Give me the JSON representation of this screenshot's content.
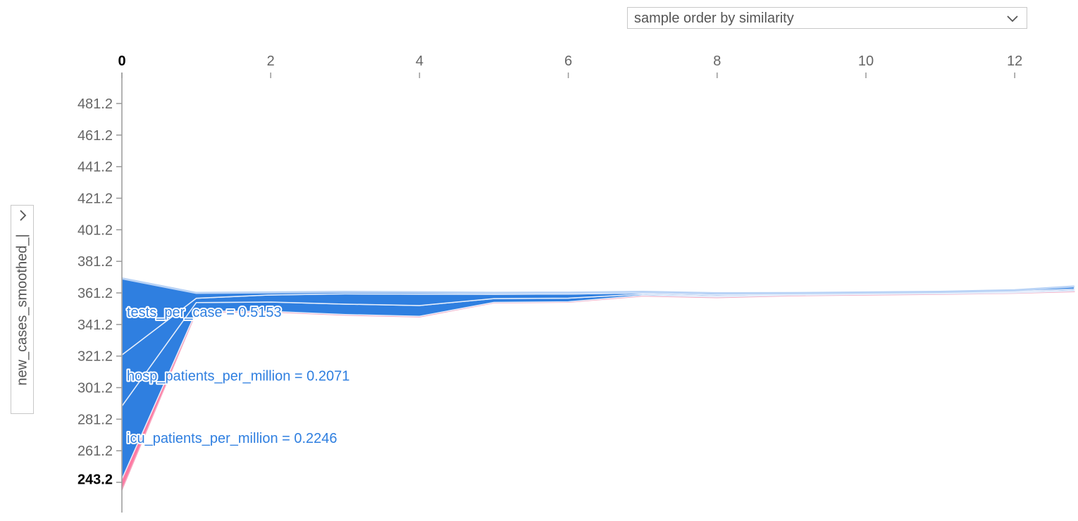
{
  "controls": {
    "order_select": "sample order by similarity",
    "y_axis_select": "new_cases_smoothed_|"
  },
  "colors": {
    "positive": "#2f7fe0",
    "negative": "#ff0d57",
    "axis": "#999999"
  },
  "icons": [
    "chevron-down-icon",
    "chevron-right-icon"
  ],
  "chart_data": {
    "type": "area",
    "xlim": [
      0,
      12.8
    ],
    "ylim": [
      236,
      490
    ],
    "x_ticks": [
      "0",
      "2",
      "4",
      "6",
      "8",
      "10",
      "12"
    ],
    "y_ticks": [
      "481.2",
      "461.2",
      "441.2",
      "421.2",
      "401.2",
      "381.2",
      "361.2",
      "341.2",
      "321.2",
      "301.2",
      "281.2",
      "261.2"
    ],
    "base_value_label": "243.2",
    "base_value": 243.2,
    "x_highlight": "0",
    "x": [
      0,
      1,
      2,
      3,
      4,
      5,
      6,
      7,
      8,
      9,
      10,
      11,
      12,
      12.8
    ],
    "bands": [
      {
        "sign": "positive",
        "lower": [
          243.2,
          349.7,
          349.5,
          347.5,
          346.4,
          355.2,
          355.6,
          359.6,
          358.6,
          359.7,
          360.2,
          360.6,
          361.2,
          362.4
        ],
        "upper": [
          289.5,
          355.1,
          355.4,
          354.1,
          353.2,
          357.6,
          357.9,
          360.4,
          359.2,
          360.0,
          360.5,
          360.9,
          361.6,
          362.8
        ]
      },
      {
        "sign": "positive",
        "lower": [
          289.5,
          355.1,
          355.4,
          354.1,
          353.2,
          357.6,
          357.9,
          360.4,
          359.2,
          360.0,
          360.5,
          360.9,
          361.6,
          362.8
        ],
        "upper": [
          321.9,
          357.8,
          359.9,
          360.6,
          360.4,
          360.3,
          360.5,
          361.1,
          360.0,
          360.6,
          361.0,
          361.3,
          362.2,
          363.6
        ]
      },
      {
        "sign": "positive",
        "lower": [
          321.9,
          357.8,
          359.9,
          360.6,
          360.4,
          360.3,
          360.5,
          361.1,
          360.0,
          360.6,
          361.0,
          361.3,
          362.2,
          363.6
        ],
        "upper": [
          370.4,
          361.2,
          361.5,
          361.9,
          361.6,
          361.3,
          361.4,
          361.9,
          361.0,
          361.1,
          361.5,
          361.9,
          362.9,
          365.3
        ]
      }
    ],
    "negative_band": {
      "lower": [
        236.3,
        349.2,
        349.1,
        347.1,
        346.0,
        354.9,
        355.3,
        359.2,
        358.2,
        359.4,
        359.9,
        360.3,
        361.0,
        362.0
      ],
      "upper": [
        243.2,
        349.7,
        349.5,
        347.5,
        346.4,
        355.2,
        355.6,
        359.6,
        358.6,
        359.7,
        360.2,
        360.6,
        361.2,
        362.4
      ]
    },
    "labels": [
      {
        "text": "tests_per_case = 0.5153",
        "y": 346.0
      },
      {
        "text": "hosp_patients_per_million = 0.2071",
        "y": 305.7
      },
      {
        "text": "icu_patients_per_million = 0.2246",
        "y": 266.3
      }
    ]
  }
}
